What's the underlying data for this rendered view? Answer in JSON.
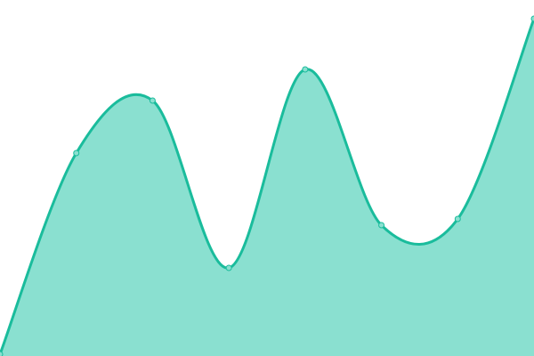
{
  "chart_data": {
    "type": "area",
    "x": [
      0,
      1,
      2,
      3,
      4,
      5,
      6,
      7
    ],
    "values": [
      2,
      228,
      287,
      99,
      322,
      147,
      154,
      379
    ],
    "ylim": [
      0,
      400
    ],
    "grid": false,
    "colors": {
      "line": "#1abc9c",
      "fill": "#8ae0d0",
      "marker_fill": "#8ae0d0"
    }
  }
}
